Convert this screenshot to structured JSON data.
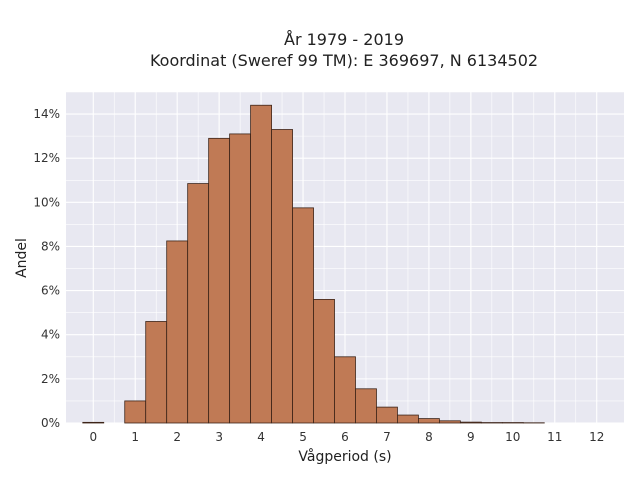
{
  "chart_data": {
    "type": "bar",
    "title_lines": [
      "År 1979 - 2019",
      "Koordinat (Sweref 99 TM): E 369697, N 6134502"
    ],
    "xlabel": "Vågperiod (s)",
    "ylabel": "Andel",
    "bin_width": 0.5,
    "x_ticks": [
      "0",
      "1",
      "2",
      "3",
      "4",
      "5",
      "6",
      "7",
      "8",
      "9",
      "10",
      "11",
      "12"
    ],
    "y_ticks": [
      "0%",
      "2%",
      "4%",
      "6%",
      "8%",
      "10%",
      "12%",
      "14%"
    ],
    "xlim": [
      -0.65,
      12.65
    ],
    "ylim": [
      0,
      15
    ],
    "grid": true,
    "colors": {
      "bar": "#c07a55",
      "bar_edge": "#3d2418",
      "plot_bg": "#e8e8f1",
      "grid": "#ffffff"
    },
    "bins": [
      {
        "x": 0.0,
        "value": 0.03
      },
      {
        "x": 1.0,
        "value": 1.0
      },
      {
        "x": 1.5,
        "value": 4.6
      },
      {
        "x": 2.0,
        "value": 8.25
      },
      {
        "x": 2.5,
        "value": 10.85
      },
      {
        "x": 3.0,
        "value": 12.9
      },
      {
        "x": 3.5,
        "value": 13.1
      },
      {
        "x": 4.0,
        "value": 14.4
      },
      {
        "x": 4.5,
        "value": 13.3
      },
      {
        "x": 5.0,
        "value": 9.75
      },
      {
        "x": 5.5,
        "value": 5.6
      },
      {
        "x": 6.0,
        "value": 3.0
      },
      {
        "x": 6.5,
        "value": 1.55
      },
      {
        "x": 7.0,
        "value": 0.72
      },
      {
        "x": 7.5,
        "value": 0.36
      },
      {
        "x": 8.0,
        "value": 0.2
      },
      {
        "x": 8.5,
        "value": 0.1
      },
      {
        "x": 9.0,
        "value": 0.04
      },
      {
        "x": 9.5,
        "value": 0.02
      },
      {
        "x": 10.0,
        "value": 0.02
      },
      {
        "x": 10.5,
        "value": 0.01
      }
    ]
  }
}
